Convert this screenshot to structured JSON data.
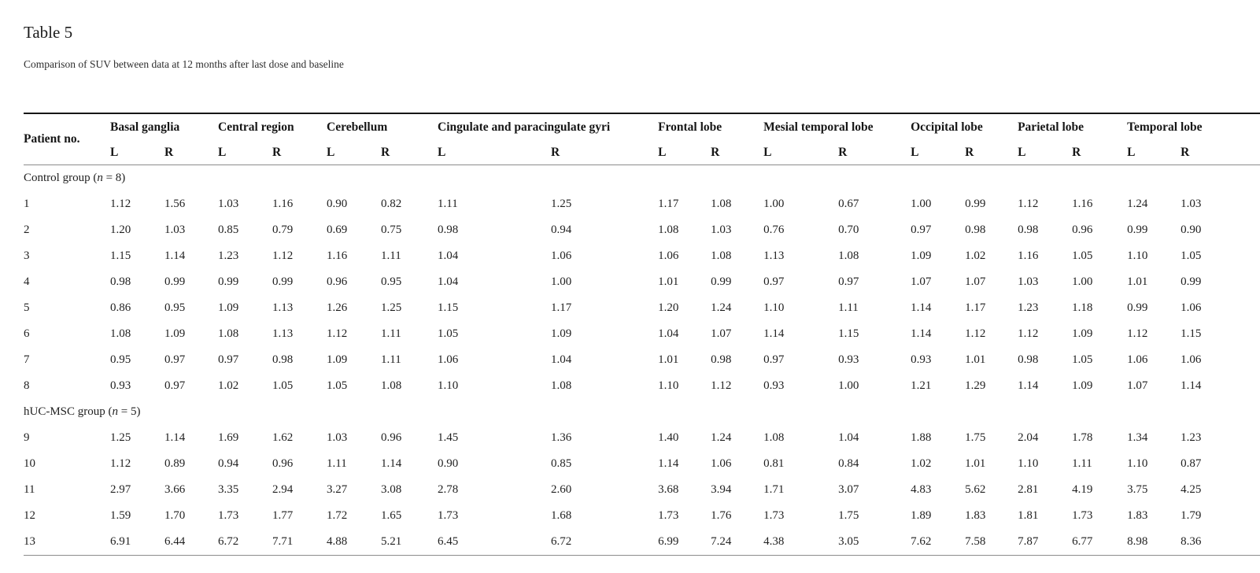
{
  "title": "Table 5",
  "subtitle": "Comparison of SUV between data at 12 months after last dose and baseline",
  "table": {
    "patient_col_header": "Patient no.",
    "regions": [
      "Basal ganglia",
      "Central region",
      "Cerebellum",
      "Cingulate and paracingulate gyri",
      "Frontal lobe",
      "Mesial temporal lobe",
      "Occipital lobe",
      "Parietal lobe",
      "Temporal lobe"
    ],
    "subheaders": [
      "L",
      "R"
    ],
    "groups": [
      {
        "label": {
          "prefix": "Control group (",
          "n": "n",
          "suffix": " = 8)"
        },
        "rows": [
          {
            "patient": "1",
            "values": [
              "1.12",
              "1.56",
              "1.03",
              "1.16",
              "0.90",
              "0.82",
              "1.11",
              "1.25",
              "1.17",
              "1.08",
              "1.00",
              "0.67",
              "1.00",
              "0.99",
              "1.12",
              "1.16",
              "1.24",
              "1.03"
            ]
          },
          {
            "patient": "2",
            "values": [
              "1.20",
              "1.03",
              "0.85",
              "0.79",
              "0.69",
              "0.75",
              "0.98",
              "0.94",
              "1.08",
              "1.03",
              "0.76",
              "0.70",
              "0.97",
              "0.98",
              "0.98",
              "0.96",
              "0.99",
              "0.90"
            ]
          },
          {
            "patient": "3",
            "values": [
              "1.15",
              "1.14",
              "1.23",
              "1.12",
              "1.16",
              "1.11",
              "1.04",
              "1.06",
              "1.06",
              "1.08",
              "1.13",
              "1.08",
              "1.09",
              "1.02",
              "1.16",
              "1.05",
              "1.10",
              "1.05"
            ]
          },
          {
            "patient": "4",
            "values": [
              "0.98",
              "0.99",
              "0.99",
              "0.99",
              "0.96",
              "0.95",
              "1.04",
              "1.00",
              "1.01",
              "0.99",
              "0.97",
              "0.97",
              "1.07",
              "1.07",
              "1.03",
              "1.00",
              "1.01",
              "0.99"
            ]
          },
          {
            "patient": "5",
            "values": [
              "0.86",
              "0.95",
              "1.09",
              "1.13",
              "1.26",
              "1.25",
              "1.15",
              "1.17",
              "1.20",
              "1.24",
              "1.10",
              "1.11",
              "1.14",
              "1.17",
              "1.23",
              "1.18",
              "0.99",
              "1.06"
            ]
          },
          {
            "patient": "6",
            "values": [
              "1.08",
              "1.09",
              "1.08",
              "1.13",
              "1.12",
              "1.11",
              "1.05",
              "1.09",
              "1.04",
              "1.07",
              "1.14",
              "1.15",
              "1.14",
              "1.12",
              "1.12",
              "1.09",
              "1.12",
              "1.15"
            ]
          },
          {
            "patient": "7",
            "values": [
              "0.95",
              "0.97",
              "0.97",
              "0.98",
              "1.09",
              "1.11",
              "1.06",
              "1.04",
              "1.01",
              "0.98",
              "0.97",
              "0.93",
              "0.93",
              "1.01",
              "0.98",
              "1.05",
              "1.06",
              "1.06"
            ]
          },
          {
            "patient": "8",
            "values": [
              "0.93",
              "0.97",
              "1.02",
              "1.05",
              "1.05",
              "1.08",
              "1.10",
              "1.08",
              "1.10",
              "1.12",
              "0.93",
              "1.00",
              "1.21",
              "1.29",
              "1.14",
              "1.09",
              "1.07",
              "1.14"
            ]
          }
        ]
      },
      {
        "label": {
          "prefix": "hUC-MSC group (",
          "n": "n",
          "suffix": " = 5)"
        },
        "rows": [
          {
            "patient": "9",
            "values": [
              "1.25",
              "1.14",
              "1.69",
              "1.62",
              "1.03",
              "0.96",
              "1.45",
              "1.36",
              "1.40",
              "1.24",
              "1.08",
              "1.04",
              "1.88",
              "1.75",
              "2.04",
              "1.78",
              "1.34",
              "1.23"
            ]
          },
          {
            "patient": "10",
            "values": [
              "1.12",
              "0.89",
              "0.94",
              "0.96",
              "1.11",
              "1.14",
              "0.90",
              "0.85",
              "1.14",
              "1.06",
              "0.81",
              "0.84",
              "1.02",
              "1.01",
              "1.10",
              "1.11",
              "1.10",
              "0.87"
            ]
          },
          {
            "patient": "11",
            "values": [
              "2.97",
              "3.66",
              "3.35",
              "2.94",
              "3.27",
              "3.08",
              "2.78",
              "2.60",
              "3.68",
              "3.94",
              "1.71",
              "3.07",
              "4.83",
              "5.62",
              "2.81",
              "4.19",
              "3.75",
              "4.25"
            ]
          },
          {
            "patient": "12",
            "values": [
              "1.59",
              "1.70",
              "1.73",
              "1.77",
              "1.72",
              "1.65",
              "1.73",
              "1.68",
              "1.73",
              "1.76",
              "1.73",
              "1.75",
              "1.89",
              "1.83",
              "1.81",
              "1.73",
              "1.83",
              "1.79"
            ]
          },
          {
            "patient": "13",
            "values": [
              "6.91",
              "6.44",
              "6.72",
              "7.71",
              "4.88",
              "5.21",
              "6.45",
              "6.72",
              "6.99",
              "7.24",
              "4.38",
              "3.05",
              "7.62",
              "7.58",
              "7.87",
              "6.77",
              "8.98",
              "8.36"
            ]
          }
        ]
      }
    ]
  }
}
